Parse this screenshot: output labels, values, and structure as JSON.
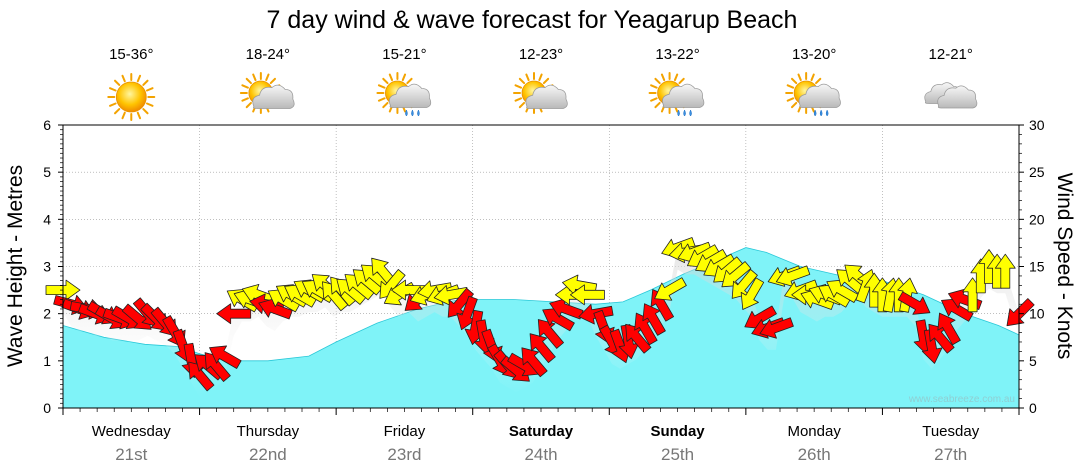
{
  "chart_data": {
    "type": "area",
    "title": "7 day wind & wave forecast for Yeagarup Beach",
    "ylabel": "Wave Height - Metres",
    "y2label": "Wind Speed - Knots",
    "ylim": [
      0,
      6
    ],
    "y2lim": [
      0,
      30
    ],
    "yticks": [
      "0",
      "1",
      "2",
      "3",
      "4",
      "5",
      "6"
    ],
    "y2ticks": [
      "0",
      "5",
      "10",
      "15",
      "20",
      "25",
      "30"
    ],
    "watermark": "www.seabreeze.com.au",
    "colors": {
      "wave_fill": "#7ff3f8",
      "wave_line": "#29c8d8",
      "arrow_strong": "#ff0000",
      "arrow_light": "#ffff00",
      "arrow_outline": "#222222",
      "grid": "#999999"
    },
    "days": [
      {
        "name": "Wednesday",
        "date": "21st",
        "bold": false,
        "temp": "15-36°",
        "icon": "sun-icon"
      },
      {
        "name": "Thursday",
        "date": "22nd",
        "bold": false,
        "temp": "18-24°",
        "icon": "partly-cloudy-icon"
      },
      {
        "name": "Friday",
        "date": "23rd",
        "bold": false,
        "temp": "15-21°",
        "icon": "sun-cloud-showers-icon"
      },
      {
        "name": "Saturday",
        "date": "24th",
        "bold": true,
        "temp": "12-23°",
        "icon": "partly-cloudy-icon"
      },
      {
        "name": "Sunday",
        "date": "25th",
        "bold": true,
        "temp": "13-22°",
        "icon": "sun-cloud-rain-icon"
      },
      {
        "name": "Monday",
        "date": "26th",
        "bold": false,
        "temp": "13-20°",
        "icon": "sun-cloud-rain-icon"
      },
      {
        "name": "Tuesday",
        "date": "27th",
        "bold": false,
        "temp": "12-21°",
        "icon": "cloud-icon"
      }
    ],
    "wave_series": {
      "name": "Wave Height",
      "points": [
        {
          "d": 0.0,
          "m": 1.75
        },
        {
          "d": 0.3,
          "m": 1.5
        },
        {
          "d": 0.6,
          "m": 1.35
        },
        {
          "d": 0.85,
          "m": 1.3
        },
        {
          "d": 1.0,
          "m": 1.15
        },
        {
          "d": 1.2,
          "m": 1.0
        },
        {
          "d": 1.5,
          "m": 1.0
        },
        {
          "d": 1.8,
          "m": 1.1
        },
        {
          "d": 2.0,
          "m": 1.4
        },
        {
          "d": 2.3,
          "m": 1.8
        },
        {
          "d": 2.6,
          "m": 2.1
        },
        {
          "d": 2.9,
          "m": 2.3
        },
        {
          "d": 3.3,
          "m": 2.3
        },
        {
          "d": 3.6,
          "m": 2.25
        },
        {
          "d": 3.9,
          "m": 2.2
        },
        {
          "d": 4.1,
          "m": 2.25
        },
        {
          "d": 4.3,
          "m": 2.5
        },
        {
          "d": 4.55,
          "m": 2.85
        },
        {
          "d": 4.8,
          "m": 3.15
        },
        {
          "d": 5.0,
          "m": 3.4
        },
        {
          "d": 5.15,
          "m": 3.3
        },
        {
          "d": 5.4,
          "m": 3.0
        },
        {
          "d": 5.7,
          "m": 2.8
        },
        {
          "d": 6.0,
          "m": 2.7
        },
        {
          "d": 6.3,
          "m": 2.4
        },
        {
          "d": 6.6,
          "m": 2.0
        },
        {
          "d": 6.85,
          "m": 1.75
        },
        {
          "d": 7.0,
          "m": 1.55
        }
      ]
    },
    "wind_series": {
      "name": "Wind Speed",
      "points": [
        {
          "d": 0.0,
          "kts": 12.5,
          "deg": 90,
          "c": "y"
        },
        {
          "d": 0.06,
          "kts": 11.0,
          "deg": 75,
          "c": "r"
        },
        {
          "d": 0.12,
          "kts": 10.5,
          "deg": 70,
          "c": "r"
        },
        {
          "d": 0.18,
          "kts": 10.5,
          "deg": 80,
          "c": "r"
        },
        {
          "d": 0.24,
          "kts": 10.0,
          "deg": 70,
          "c": "r"
        },
        {
          "d": 0.3,
          "kts": 10.0,
          "deg": 60,
          "c": "r"
        },
        {
          "d": 0.36,
          "kts": 9.5,
          "deg": 60,
          "c": "r"
        },
        {
          "d": 0.42,
          "kts": 9.5,
          "deg": 70,
          "c": "r"
        },
        {
          "d": 0.48,
          "kts": 9.5,
          "deg": 60,
          "c": "r"
        },
        {
          "d": 0.55,
          "kts": 9.5,
          "deg": 50,
          "c": "r"
        },
        {
          "d": 0.62,
          "kts": 10.0,
          "deg": 40,
          "c": "r"
        },
        {
          "d": 0.68,
          "kts": 9.5,
          "deg": 45,
          "c": "r"
        },
        {
          "d": 0.75,
          "kts": 9.0,
          "deg": 40,
          "c": "r"
        },
        {
          "d": 0.82,
          "kts": 8.0,
          "deg": 30,
          "c": "r"
        },
        {
          "d": 0.88,
          "kts": 6.5,
          "deg": 20,
          "c": "r"
        },
        {
          "d": 0.94,
          "kts": 5.0,
          "deg": 10,
          "c": "r"
        },
        {
          "d": 1.0,
          "kts": 3.5,
          "deg": 220,
          "c": "r"
        },
        {
          "d": 1.06,
          "kts": 4.5,
          "deg": 230,
          "c": "r"
        },
        {
          "d": 1.12,
          "kts": 4.5,
          "deg": 220,
          "c": "r"
        },
        {
          "d": 1.18,
          "kts": 5.5,
          "deg": 240,
          "c": "r"
        },
        {
          "d": 1.25,
          "kts": 10.0,
          "deg": 270,
          "c": "r"
        },
        {
          "d": 1.31,
          "kts": 11.5,
          "deg": 240,
          "c": "y"
        },
        {
          "d": 1.37,
          "kts": 11.5,
          "deg": 250,
          "c": "y"
        },
        {
          "d": 1.43,
          "kts": 12.0,
          "deg": 250,
          "c": "y"
        },
        {
          "d": 1.49,
          "kts": 11.0,
          "deg": 260,
          "c": "r"
        },
        {
          "d": 1.55,
          "kts": 10.5,
          "deg": 250,
          "c": "r"
        },
        {
          "d": 1.61,
          "kts": 11.5,
          "deg": 240,
          "c": "y"
        },
        {
          "d": 1.67,
          "kts": 12.0,
          "deg": 240,
          "c": "y"
        },
        {
          "d": 1.73,
          "kts": 12.0,
          "deg": 240,
          "c": "y"
        },
        {
          "d": 1.8,
          "kts": 12.5,
          "deg": 240,
          "c": "y"
        },
        {
          "d": 1.86,
          "kts": 12.5,
          "deg": 240,
          "c": "y"
        },
        {
          "d": 1.92,
          "kts": 13.0,
          "deg": 230,
          "c": "y"
        },
        {
          "d": 1.98,
          "kts": 12.0,
          "deg": 220,
          "c": "y"
        },
        {
          "d": 2.04,
          "kts": 12.5,
          "deg": 220,
          "c": "y"
        },
        {
          "d": 2.1,
          "kts": 12.5,
          "deg": 230,
          "c": "y"
        },
        {
          "d": 2.16,
          "kts": 13.0,
          "deg": 230,
          "c": "y"
        },
        {
          "d": 2.22,
          "kts": 13.5,
          "deg": 230,
          "c": "y"
        },
        {
          "d": 2.28,
          "kts": 14.0,
          "deg": 230,
          "c": "y"
        },
        {
          "d": 2.34,
          "kts": 14.5,
          "deg": 220,
          "c": "y"
        },
        {
          "d": 2.4,
          "kts": 13.0,
          "deg": 320,
          "c": "y"
        },
        {
          "d": 2.46,
          "kts": 12.0,
          "deg": 300,
          "c": "y"
        },
        {
          "d": 2.53,
          "kts": 12.5,
          "deg": 270,
          "c": "y"
        },
        {
          "d": 2.6,
          "kts": 11.5,
          "deg": 310,
          "c": "r"
        },
        {
          "d": 2.66,
          "kts": 12.0,
          "deg": 290,
          "c": "y"
        },
        {
          "d": 2.72,
          "kts": 12.5,
          "deg": 280,
          "c": "y"
        },
        {
          "d": 2.78,
          "kts": 12.0,
          "deg": 290,
          "c": "y"
        },
        {
          "d": 2.84,
          "kts": 12.0,
          "deg": 280,
          "c": "y"
        },
        {
          "d": 2.9,
          "kts": 11.0,
          "deg": 320,
          "c": "r"
        },
        {
          "d": 2.96,
          "kts": 10.0,
          "deg": 340,
          "c": "r"
        },
        {
          "d": 3.02,
          "kts": 8.5,
          "deg": 350,
          "c": "r"
        },
        {
          "d": 3.08,
          "kts": 7.5,
          "deg": 10,
          "c": "r"
        },
        {
          "d": 3.14,
          "kts": 6.5,
          "deg": 20,
          "c": "r"
        },
        {
          "d": 3.2,
          "kts": 5.0,
          "deg": 30,
          "c": "r"
        },
        {
          "d": 3.26,
          "kts": 4.5,
          "deg": 40,
          "c": "r"
        },
        {
          "d": 3.32,
          "kts": 4.0,
          "deg": 50,
          "c": "r"
        },
        {
          "d": 3.38,
          "kts": 4.5,
          "deg": 60,
          "c": "r"
        },
        {
          "d": 3.44,
          "kts": 5.0,
          "deg": 220,
          "c": "r"
        },
        {
          "d": 3.5,
          "kts": 6.5,
          "deg": 220,
          "c": "r"
        },
        {
          "d": 3.56,
          "kts": 8.0,
          "deg": 220,
          "c": "r"
        },
        {
          "d": 3.62,
          "kts": 9.5,
          "deg": 240,
          "c": "r"
        },
        {
          "d": 3.68,
          "kts": 10.5,
          "deg": 250,
          "c": "r"
        },
        {
          "d": 3.73,
          "kts": 12.0,
          "deg": 270,
          "c": "y"
        },
        {
          "d": 3.78,
          "kts": 13.0,
          "deg": 260,
          "c": "y"
        },
        {
          "d": 3.84,
          "kts": 12.0,
          "deg": 270,
          "c": "y"
        },
        {
          "d": 3.9,
          "kts": 10.0,
          "deg": 280,
          "c": "r"
        },
        {
          "d": 3.96,
          "kts": 8.5,
          "deg": 20,
          "c": "r"
        },
        {
          "d": 4.02,
          "kts": 7.0,
          "deg": 30,
          "c": "r"
        },
        {
          "d": 4.08,
          "kts": 6.5,
          "deg": 20,
          "c": "r"
        },
        {
          "d": 4.14,
          "kts": 7.0,
          "deg": 10,
          "c": "r"
        },
        {
          "d": 4.2,
          "kts": 7.5,
          "deg": 220,
          "c": "r"
        },
        {
          "d": 4.26,
          "kts": 8.5,
          "deg": 210,
          "c": "r"
        },
        {
          "d": 4.32,
          "kts": 9.5,
          "deg": 210,
          "c": "r"
        },
        {
          "d": 4.38,
          "kts": 11.0,
          "deg": 210,
          "c": "r"
        },
        {
          "d": 4.44,
          "kts": 12.5,
          "deg": 300,
          "c": "y"
        },
        {
          "d": 4.5,
          "kts": 17.0,
          "deg": 290,
          "c": "y"
        },
        {
          "d": 4.56,
          "kts": 16.5,
          "deg": 280,
          "c": "y"
        },
        {
          "d": 4.62,
          "kts": 16.5,
          "deg": 290,
          "c": "y"
        },
        {
          "d": 4.68,
          "kts": 16.0,
          "deg": 300,
          "c": "y"
        },
        {
          "d": 4.74,
          "kts": 15.5,
          "deg": 300,
          "c": "y"
        },
        {
          "d": 4.8,
          "kts": 15.0,
          "deg": 300,
          "c": "y"
        },
        {
          "d": 4.86,
          "kts": 14.5,
          "deg": 310,
          "c": "y"
        },
        {
          "d": 4.92,
          "kts": 14.0,
          "deg": 310,
          "c": "y"
        },
        {
          "d": 4.98,
          "kts": 13.0,
          "deg": 320,
          "c": "y"
        },
        {
          "d": 5.04,
          "kts": 12.0,
          "deg": 330,
          "c": "y"
        },
        {
          "d": 5.1,
          "kts": 9.5,
          "deg": 300,
          "c": "r"
        },
        {
          "d": 5.16,
          "kts": 8.5,
          "deg": 290,
          "c": "r"
        },
        {
          "d": 5.22,
          "kts": 8.5,
          "deg": 290,
          "c": "r"
        },
        {
          "d": 5.28,
          "kts": 14.0,
          "deg": 290,
          "c": "y"
        },
        {
          "d": 5.34,
          "kts": 14.0,
          "deg": 290,
          "c": "y"
        },
        {
          "d": 5.4,
          "kts": 12.5,
          "deg": 290,
          "c": "y"
        },
        {
          "d": 5.46,
          "kts": 12.0,
          "deg": 270,
          "c": "y"
        },
        {
          "d": 5.52,
          "kts": 11.5,
          "deg": 250,
          "c": "y"
        },
        {
          "d": 5.58,
          "kts": 12.0,
          "deg": 250,
          "c": "y"
        },
        {
          "d": 5.64,
          "kts": 12.0,
          "deg": 240,
          "c": "y"
        },
        {
          "d": 5.7,
          "kts": 12.5,
          "deg": 240,
          "c": "y"
        },
        {
          "d": 5.76,
          "kts": 13.5,
          "deg": 230,
          "c": "y"
        },
        {
          "d": 5.82,
          "kts": 14.0,
          "deg": 230,
          "c": "y"
        },
        {
          "d": 5.88,
          "kts": 13.0,
          "deg": 160,
          "c": "y"
        },
        {
          "d": 5.94,
          "kts": 12.5,
          "deg": 180,
          "c": "y"
        },
        {
          "d": 6.0,
          "kts": 12.0,
          "deg": 180,
          "c": "y"
        },
        {
          "d": 6.06,
          "kts": 12.0,
          "deg": 170,
          "c": "y"
        },
        {
          "d": 6.12,
          "kts": 12.0,
          "deg": 180,
          "c": "y"
        },
        {
          "d": 6.18,
          "kts": 12.0,
          "deg": 170,
          "c": "y"
        },
        {
          "d": 6.24,
          "kts": 11.0,
          "deg": 60,
          "c": "r"
        },
        {
          "d": 6.3,
          "kts": 7.5,
          "deg": 10,
          "c": "r"
        },
        {
          "d": 6.36,
          "kts": 6.5,
          "deg": 10,
          "c": "r"
        },
        {
          "d": 6.42,
          "kts": 7.5,
          "deg": 220,
          "c": "r"
        },
        {
          "d": 6.48,
          "kts": 8.5,
          "deg": 210,
          "c": "r"
        },
        {
          "d": 6.54,
          "kts": 10.5,
          "deg": 240,
          "c": "r"
        },
        {
          "d": 6.6,
          "kts": 11.5,
          "deg": 250,
          "c": "r"
        },
        {
          "d": 6.66,
          "kts": 12.0,
          "deg": 180,
          "c": "y"
        },
        {
          "d": 6.72,
          "kts": 14.0,
          "deg": 180,
          "c": "y"
        },
        {
          "d": 6.78,
          "kts": 15.0,
          "deg": 180,
          "c": "y"
        },
        {
          "d": 6.84,
          "kts": 14.5,
          "deg": 180,
          "c": "y"
        },
        {
          "d": 6.9,
          "kts": 14.5,
          "deg": 180,
          "c": "y"
        },
        {
          "d": 7.0,
          "kts": 10.0,
          "deg": 315,
          "c": "r"
        }
      ]
    }
  }
}
